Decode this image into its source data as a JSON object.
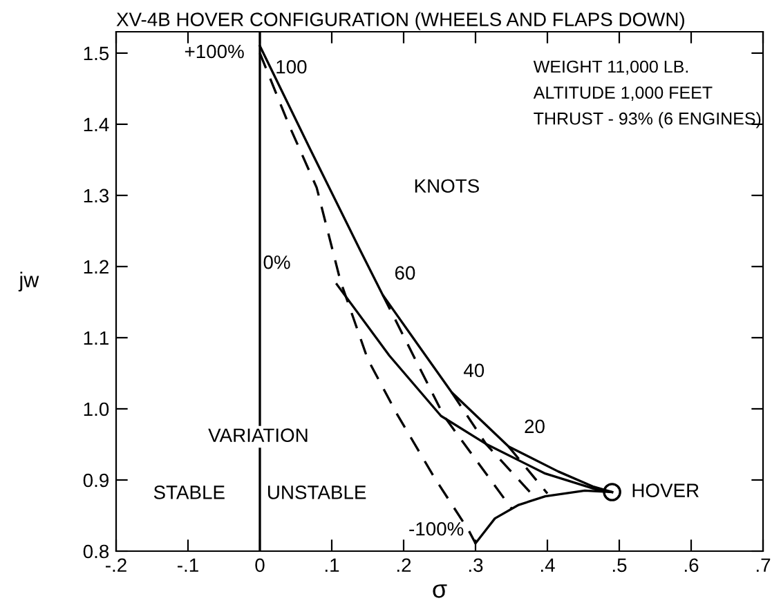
{
  "chart_data": {
    "type": "line",
    "title": "XV-4B HOVER CONFIGURATION (WHEELS AND FLAPS DOWN)",
    "xlabel": "σ",
    "ylabel": "jw",
    "xlim": [
      -0.2,
      0.7
    ],
    "ylim": [
      0.8,
      1.53
    ],
    "xticks": [
      {
        "value": -0.2,
        "label": "-.2"
      },
      {
        "value": -0.1,
        "label": "-.1"
      },
      0,
      {
        "value": 0.1,
        "label": ".1"
      },
      {
        "value": 0.2,
        "label": ".2"
      },
      {
        "value": 0.3,
        "label": ".3"
      },
      {
        "value": 0.4,
        "label": ".4"
      },
      {
        "value": 0.5,
        "label": ".5"
      },
      {
        "value": 0.6,
        "label": ".6"
      },
      {
        "value": 0.7,
        "label": ".7"
      }
    ],
    "yticks": [
      {
        "value": 0.8,
        "label": "0.8"
      },
      {
        "value": 0.9,
        "label": "0.9"
      },
      {
        "value": 1.0,
        "label": "1.0"
      },
      {
        "value": 1.1,
        "label": "1.1"
      },
      {
        "value": 1.2,
        "label": "1.2"
      },
      {
        "value": 1.3,
        "label": "1.3"
      },
      {
        "value": 1.4,
        "label": "1.4"
      },
      {
        "value": 1.5,
        "label": "1.5"
      }
    ],
    "grid": false,
    "legend": false,
    "ref_lines": [
      {
        "axis": "x",
        "value": 0,
        "color": "#000000",
        "line_style": "solid"
      }
    ],
    "series": [
      {
        "color": "#000000",
        "line_style": "solid",
        "marker": "none",
        "x": [
          0,
          0.07,
          0.14,
          0.171,
          0.22,
          0.267,
          0.346,
          0.415,
          0.463,
          0.49
        ],
        "values": [
          1.51,
          1.365,
          1.222,
          1.16,
          1.09,
          1.023,
          0.947,
          0.912,
          0.891,
          0.883
        ]
      },
      {
        "type": "line",
        "color": "#000000",
        "line_style": "solid",
        "marker": "none",
        "x": [
          0.107,
          0.18,
          0.252,
          0.314,
          0.397,
          0.467,
          0.49
        ],
        "values": [
          1.175,
          1.075,
          0.99,
          0.951,
          0.909,
          0.887,
          0.883
        ]
      },
      {
        "type": "line",
        "color": "#000000",
        "line_style": "solid",
        "marker": "none",
        "x": [
          0.3,
          0.327,
          0.36,
          0.397,
          0.452,
          0.49
        ],
        "values": [
          0.811,
          0.846,
          0.865,
          0.877,
          0.885,
          0.883
        ]
      },
      {
        "type": "line",
        "color": "#000000",
        "line_style": "dashed",
        "marker": "none",
        "x": [
          0,
          0.04,
          0.079,
          0.112,
          0.15,
          0.19,
          0.243,
          0.29,
          0.3
        ],
        "values": [
          1.5,
          1.4,
          1.311,
          1.18,
          1.07,
          0.994,
          0.903,
          0.83,
          0.811
        ]
      },
      {
        "type": "line",
        "color": "#000000",
        "line_style": "dashed",
        "marker": "none",
        "x": [
          0.171,
          0.256,
          0.35
        ],
        "values": [
          1.16,
          0.99,
          0.86
        ]
      },
      {
        "type": "line",
        "color": "#000000",
        "line_style": "dashed",
        "marker": "none",
        "x": [
          0.267,
          0.315,
          0.383
        ],
        "values": [
          1.023,
          0.95,
          0.875
        ]
      },
      {
        "type": "line",
        "color": "#000000",
        "line_style": "dashed",
        "marker": "none",
        "x": [
          0.346,
          0.4
        ],
        "values": [
          0.947,
          0.881
        ]
      },
      {
        "type": "scatter",
        "color": "#000000",
        "marker": "circle",
        "x": [
          0.49
        ],
        "values": [
          0.883
        ]
      }
    ],
    "annotations": [
      {
        "text": "+100%",
        "x": 0,
        "y": 1.5
      },
      {
        "text": "100",
        "x": 0,
        "y": 1.5
      },
      "KNOTS",
      {
        "text": "60",
        "x": 0.171,
        "y": 1.16
      },
      {
        "text": "40",
        "x": 0.267,
        "y": 1.023
      },
      {
        "text": "20",
        "x": 0.346,
        "y": 0.947
      },
      {
        "text": "0%",
        "x": 0.107,
        "y": 1.175
      },
      {
        "text": "-100%",
        "x": 0.3,
        "y": 0.811
      },
      {
        "text": "HOVER",
        "x": 0.49,
        "y": 0.883
      },
      "VARIATION",
      "STABLE",
      "UNSTABLE",
      "WEIGHT 11,000 LB.",
      "ALTITUDE 1,000 FEET",
      "THRUST - 93% (6 ENGINES)"
    ]
  }
}
